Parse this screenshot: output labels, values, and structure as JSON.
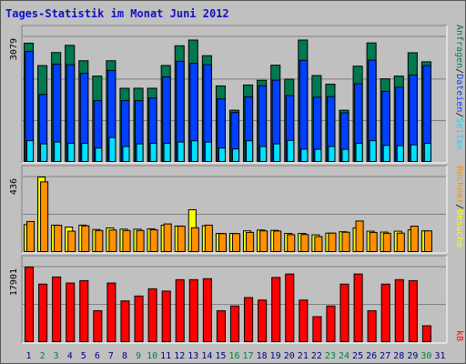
{
  "title": "Tages-Statistik im Monat Juni 2012",
  "colors": {
    "hits": "#007850",
    "files": "#0040ff",
    "pages": "#00e0ff",
    "visits": "#ffff00",
    "sites": "#ff9000",
    "kbytes": "#ff0000",
    "weekday_label": "#000080",
    "weekend_label": "#008040"
  },
  "chart_data": [
    {
      "type": "bar",
      "name": "hits-files-pages",
      "ymax_label": "3079",
      "ylim": [
        0,
        3079
      ],
      "x": [
        "1",
        "2",
        "3",
        "4",
        "5",
        "6",
        "7",
        "8",
        "9",
        "10",
        "11",
        "12",
        "13",
        "14",
        "15",
        "16",
        "17",
        "18",
        "19",
        "20",
        "21",
        "22",
        "23",
        "24",
        "25",
        "26",
        "27",
        "28",
        "29",
        "30",
        "31"
      ],
      "series": [
        {
          "name": "Anfragen",
          "values": [
            2924,
            2375,
            2694,
            2871,
            2493,
            2117,
            2493,
            1818,
            1819,
            1819,
            2377,
            2861,
            3001,
            2617,
            1877,
            1280,
            1899,
            2014,
            2384,
            2041,
            3001,
            2131,
            1918,
            1280,
            2360,
            2930,
            2049,
            2117,
            2689,
            2467,
            0
          ]
        },
        {
          "name": "Dateien",
          "values": [
            2721,
            1665,
            2407,
            2397,
            2185,
            1516,
            2256,
            1516,
            1516,
            1579,
            2100,
            2479,
            2429,
            2397,
            1557,
            1224,
            1607,
            1880,
            2017,
            1640,
            2503,
            1600,
            1613,
            1216,
            1930,
            2507,
            1743,
            1842,
            2143,
            2375,
            0
          ]
        },
        {
          "name": "Seiten",
          "values": [
            533,
            455,
            500,
            468,
            468,
            353,
            610,
            390,
            455,
            468,
            468,
            500,
            530,
            500,
            353,
            331,
            530,
            390,
            455,
            540,
            325,
            322,
            390,
            322,
            468,
            533,
            416,
            410,
            431,
            468,
            0
          ]
        }
      ],
      "legend": [
        "Anfragen",
        "Dateien",
        "Seiten"
      ]
    },
    {
      "type": "bar",
      "name": "visits-sites",
      "ymax_label": "436",
      "ylim": [
        0,
        436
      ],
      "x": [
        "1",
        "2",
        "3",
        "4",
        "5",
        "6",
        "7",
        "8",
        "9",
        "10",
        "11",
        "12",
        "13",
        "14",
        "15",
        "16",
        "17",
        "18",
        "19",
        "20",
        "21",
        "22",
        "23",
        "24",
        "25",
        "26",
        "27",
        "28",
        "29",
        "30",
        "31"
      ],
      "series": [
        {
          "name": "Besuche",
          "values": [
            161,
            436,
            158,
            147,
            158,
            133,
            142,
            135,
            135,
            137,
            158,
            153,
            247,
            155,
            110,
            110,
            125,
            130,
            128,
            110,
            110,
            102,
            112,
            120,
            142,
            123,
            118,
            123,
            131,
            125,
            0
          ]
        },
        {
          "name": "Rechner",
          "values": [
            179,
            408,
            157,
            123,
            154,
            127,
            130,
            127,
            127,
            131,
            165,
            152,
            143,
            158,
            109,
            109,
            116,
            125,
            124,
            103,
            104,
            92,
            112,
            117,
            182,
            116,
            111,
            112,
            152,
            125,
            0
          ]
        }
      ],
      "legend": [
        "Rechner",
        "Besuche"
      ]
    },
    {
      "type": "bar",
      "name": "kbytes",
      "ymax_label": "17901",
      "ylim": [
        0,
        17901
      ],
      "x": [
        "1",
        "2",
        "3",
        "4",
        "5",
        "6",
        "7",
        "8",
        "9",
        "10",
        "11",
        "12",
        "13",
        "14",
        "15",
        "16",
        "17",
        "18",
        "19",
        "20",
        "21",
        "22",
        "23",
        "24",
        "25",
        "26",
        "27",
        "28",
        "29",
        "30",
        "31"
      ],
      "series": [
        {
          "name": "kB",
          "values": [
            17901,
            13861,
            15554,
            14117,
            14688,
            7560,
            14117,
            9888,
            11037,
            12745,
            12208,
            14921,
            14921,
            15145,
            7560,
            8676,
            10675,
            10086,
            15439,
            16258,
            10086,
            6142,
            8676,
            13861,
            16258,
            7560,
            13861,
            14921,
            14688,
            3994,
            0
          ]
        }
      ],
      "legend": [
        "kB"
      ]
    }
  ],
  "x_labels": [
    {
      "label": "1",
      "weekend": false
    },
    {
      "label": "2",
      "weekend": true
    },
    {
      "label": "3",
      "weekend": true
    },
    {
      "label": "4",
      "weekend": false
    },
    {
      "label": "5",
      "weekend": false
    },
    {
      "label": "6",
      "weekend": false
    },
    {
      "label": "7",
      "weekend": false
    },
    {
      "label": "8",
      "weekend": false
    },
    {
      "label": "9",
      "weekend": true
    },
    {
      "label": "10",
      "weekend": true
    },
    {
      "label": "11",
      "weekend": false
    },
    {
      "label": "12",
      "weekend": false
    },
    {
      "label": "13",
      "weekend": false
    },
    {
      "label": "14",
      "weekend": false
    },
    {
      "label": "15",
      "weekend": false
    },
    {
      "label": "16",
      "weekend": true
    },
    {
      "label": "17",
      "weekend": true
    },
    {
      "label": "18",
      "weekend": false
    },
    {
      "label": "19",
      "weekend": false
    },
    {
      "label": "20",
      "weekend": false
    },
    {
      "label": "21",
      "weekend": false
    },
    {
      "label": "22",
      "weekend": false
    },
    {
      "label": "23",
      "weekend": true
    },
    {
      "label": "24",
      "weekend": true
    },
    {
      "label": "25",
      "weekend": false
    },
    {
      "label": "26",
      "weekend": false
    },
    {
      "label": "27",
      "weekend": false
    },
    {
      "label": "28",
      "weekend": false
    },
    {
      "label": "29",
      "weekend": false
    },
    {
      "label": "30",
      "weekend": true
    },
    {
      "label": "31",
      "weekend": false
    }
  ],
  "legend_labels": {
    "top": [
      "Anfragen",
      "/",
      "Dateien",
      "/",
      "Seiten"
    ],
    "middle": [
      "Rechner",
      "/",
      "Besuche"
    ],
    "bottom": [
      "kB"
    ]
  }
}
